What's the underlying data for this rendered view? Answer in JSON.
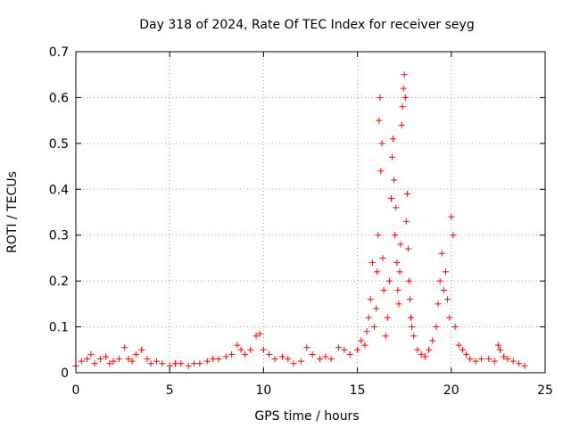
{
  "chart_data": {
    "type": "scatter",
    "title": "Day 318 of 2024, Rate Of TEC Index for receiver seyg",
    "xlabel": "GPS time / hours",
    "ylabel": "ROTI / TECUs",
    "xlim": [
      0,
      25
    ],
    "ylim": [
      0,
      0.7
    ],
    "xticks": [
      "0",
      "5",
      "10",
      "15",
      "20",
      "25"
    ],
    "yticks": [
      "0",
      "0.1",
      "0.2",
      "0.3",
      "0.4",
      "0.5",
      "0.6",
      "0.7"
    ],
    "grid": true,
    "marker": "plus",
    "color": "#ff0000",
    "series": [
      {
        "x": [
          0.0,
          0.3,
          0.6,
          0.8,
          1.0,
          1.3,
          1.6,
          1.8,
          2.0,
          2.3,
          2.6,
          2.8,
          3.0,
          3.2,
          3.5,
          3.8,
          4.0,
          4.3,
          4.6,
          5.0,
          5.3,
          5.6,
          6.0,
          6.3,
          6.6,
          7.0,
          7.3,
          7.6,
          8.0,
          8.3,
          8.6,
          8.8,
          9.0,
          9.3,
          9.6,
          9.8,
          10.0,
          10.3,
          10.6,
          11.0,
          11.3,
          11.6,
          12.0,
          12.3,
          12.6,
          13.0,
          13.3,
          13.6,
          14.0,
          14.3,
          14.6,
          15.0,
          15.2,
          15.4,
          15.5,
          15.6,
          15.7,
          15.8,
          15.9,
          16.0,
          16.05,
          16.1,
          16.15,
          16.2,
          16.25,
          16.3,
          16.35,
          16.4,
          16.5,
          16.6,
          16.7,
          16.8,
          16.85,
          16.9,
          16.95,
          17.0,
          17.05,
          17.1,
          17.15,
          17.2,
          17.25,
          17.3,
          17.35,
          17.4,
          17.45,
          17.5,
          17.55,
          17.6,
          17.65,
          17.7,
          17.75,
          17.8,
          17.85,
          17.9,
          18.0,
          18.2,
          18.4,
          18.6,
          18.8,
          19.0,
          19.2,
          19.3,
          19.4,
          19.5,
          19.6,
          19.7,
          19.8,
          19.9,
          20.0,
          20.1,
          20.2,
          20.4,
          20.6,
          20.8,
          21.0,
          21.3,
          21.6,
          22.0,
          22.3,
          22.5,
          22.6,
          22.8,
          23.0,
          23.3,
          23.6,
          23.9
        ],
        "y": [
          0.015,
          0.025,
          0.03,
          0.04,
          0.02,
          0.03,
          0.035,
          0.02,
          0.025,
          0.03,
          0.055,
          0.03,
          0.025,
          0.04,
          0.05,
          0.03,
          0.02,
          0.025,
          0.02,
          0.015,
          0.02,
          0.02,
          0.015,
          0.02,
          0.02,
          0.025,
          0.03,
          0.03,
          0.035,
          0.04,
          0.06,
          0.05,
          0.04,
          0.05,
          0.08,
          0.085,
          0.05,
          0.04,
          0.03,
          0.035,
          0.03,
          0.02,
          0.025,
          0.055,
          0.04,
          0.03,
          0.035,
          0.03,
          0.055,
          0.05,
          0.04,
          0.05,
          0.07,
          0.06,
          0.09,
          0.12,
          0.16,
          0.24,
          0.1,
          0.14,
          0.22,
          0.3,
          0.55,
          0.6,
          0.44,
          0.5,
          0.25,
          0.18,
          0.08,
          0.12,
          0.2,
          0.38,
          0.47,
          0.51,
          0.42,
          0.3,
          0.36,
          0.24,
          0.18,
          0.15,
          0.22,
          0.28,
          0.54,
          0.58,
          0.62,
          0.65,
          0.6,
          0.33,
          0.39,
          0.27,
          0.2,
          0.16,
          0.12,
          0.1,
          0.08,
          0.05,
          0.04,
          0.035,
          0.05,
          0.07,
          0.1,
          0.15,
          0.2,
          0.26,
          0.18,
          0.22,
          0.16,
          0.12,
          0.34,
          0.3,
          0.1,
          0.06,
          0.05,
          0.04,
          0.03,
          0.025,
          0.03,
          0.03,
          0.025,
          0.06,
          0.05,
          0.035,
          0.03,
          0.025,
          0.02,
          0.015
        ]
      }
    ]
  }
}
